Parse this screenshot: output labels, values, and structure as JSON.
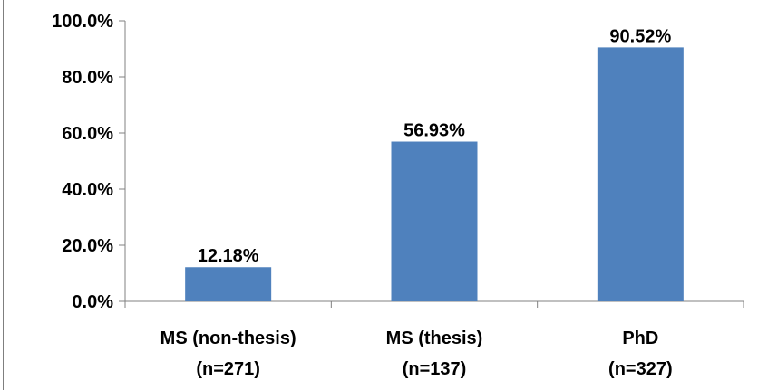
{
  "chart_data": {
    "type": "bar",
    "categories": [
      {
        "line1": "MS (non-thesis)",
        "line2": "(n=271)"
      },
      {
        "line1": "MS (thesis)",
        "line2": "(n=137)"
      },
      {
        "line1": "PhD",
        "line2": "(n=327)"
      }
    ],
    "values": [
      12.18,
      56.93,
      90.52
    ],
    "data_labels": [
      "12.18%",
      "56.93%",
      "90.52%"
    ],
    "y_ticks": [
      {
        "value": 0,
        "label": "0.0%"
      },
      {
        "value": 20,
        "label": "20.0%"
      },
      {
        "value": 40,
        "label": "40.0%"
      },
      {
        "value": 60,
        "label": "60.0%"
      },
      {
        "value": 80,
        "label": "80.0%"
      },
      {
        "value": 100,
        "label": "100.0%"
      }
    ],
    "ylim": [
      0,
      100
    ],
    "grid": false,
    "legend": "none",
    "bar_color": "#4f81bd",
    "axis_color": "#808080"
  }
}
